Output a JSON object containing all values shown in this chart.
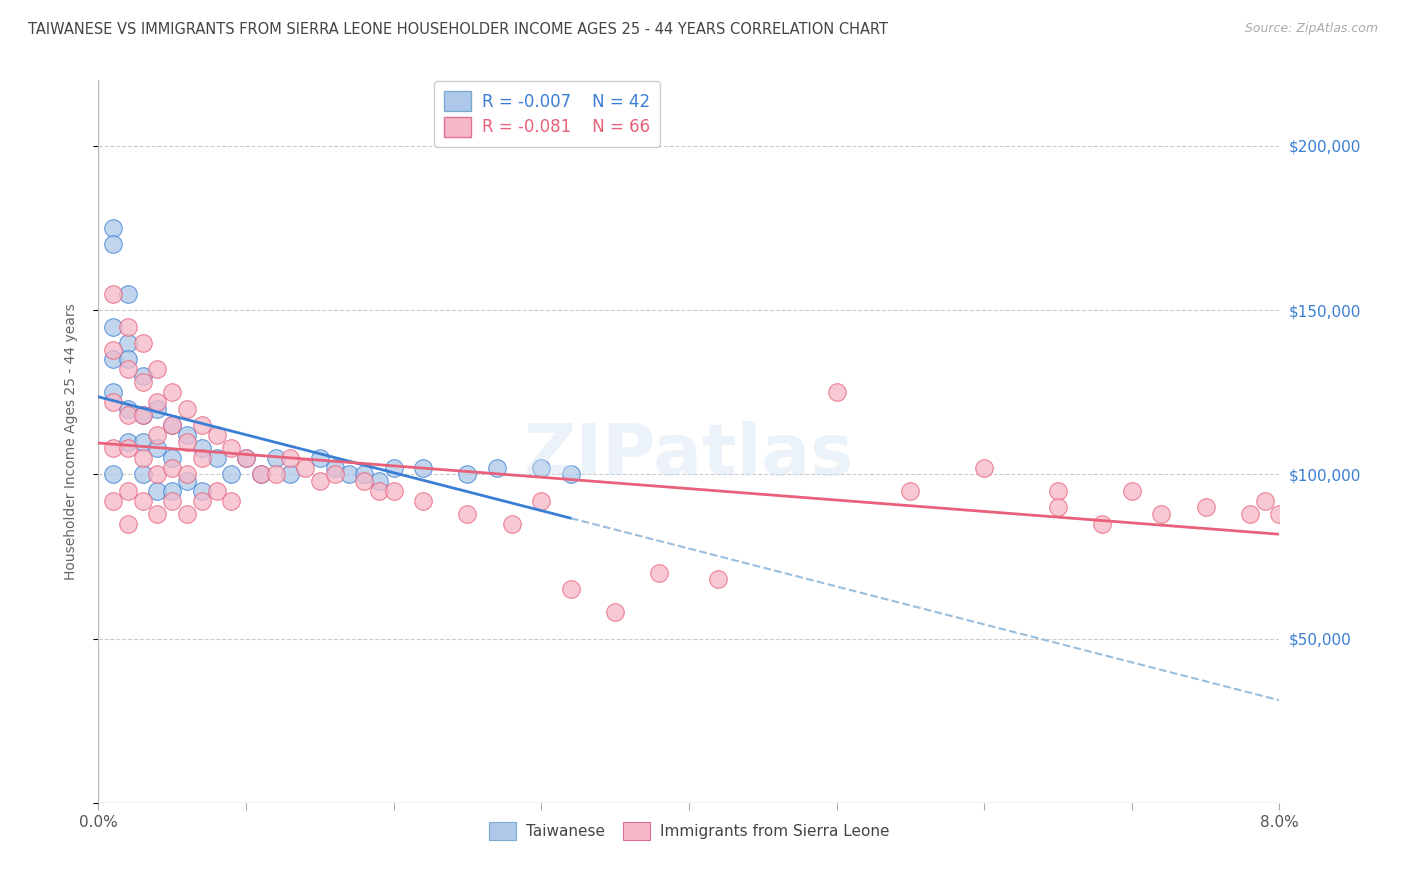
{
  "title": "TAIWANESE VS IMMIGRANTS FROM SIERRA LEONE HOUSEHOLDER INCOME AGES 25 - 44 YEARS CORRELATION CHART",
  "source": "Source: ZipAtlas.com",
  "ylabel": "Householder Income Ages 25 - 44 years",
  "legend_label_1": "Taiwanese",
  "legend_label_2": "Immigrants from Sierra Leone",
  "r1": -0.007,
  "n1": 42,
  "r2": -0.081,
  "n2": 66,
  "color1": "#adc8e8",
  "color2": "#f5b8c8",
  "line_color1": "#3a7fd4",
  "line_color2": "#e8607a",
  "dashed_color": "#9abede",
  "xlim": [
    0.0,
    0.08
  ],
  "ylim": [
    0,
    220000
  ],
  "yticks": [
    0,
    50000,
    100000,
    150000,
    200000
  ],
  "ytick_labels": [
    "",
    "$50,000",
    "$100,000",
    "$150,000",
    "$200,000"
  ],
  "xticks": [
    0.0,
    0.01,
    0.02,
    0.03,
    0.04,
    0.05,
    0.06,
    0.07,
    0.08
  ],
  "xtick_labels": [
    "0.0%",
    "",
    "",
    "",
    "",
    "",
    "",
    "",
    "8.0%"
  ],
  "watermark": "ZIPatlas",
  "taiwanese_x": [
    0.001,
    0.001,
    0.001,
    0.001,
    0.001,
    0.001,
    0.002,
    0.002,
    0.002,
    0.002,
    0.002,
    0.003,
    0.003,
    0.003,
    0.003,
    0.004,
    0.004,
    0.004,
    0.005,
    0.005,
    0.005,
    0.006,
    0.006,
    0.007,
    0.007,
    0.008,
    0.009,
    0.01,
    0.011,
    0.012,
    0.013,
    0.015,
    0.016,
    0.017,
    0.018,
    0.019,
    0.02,
    0.022,
    0.025,
    0.027,
    0.03,
    0.032
  ],
  "taiwanese_y": [
    175000,
    170000,
    145000,
    135000,
    125000,
    100000,
    155000,
    140000,
    135000,
    120000,
    110000,
    130000,
    118000,
    110000,
    100000,
    120000,
    108000,
    95000,
    115000,
    105000,
    95000,
    112000,
    98000,
    108000,
    95000,
    105000,
    100000,
    105000,
    100000,
    105000,
    100000,
    105000,
    102000,
    100000,
    100000,
    98000,
    102000,
    102000,
    100000,
    102000,
    102000,
    100000
  ],
  "sierra_leone_x": [
    0.001,
    0.001,
    0.001,
    0.001,
    0.001,
    0.002,
    0.002,
    0.002,
    0.002,
    0.002,
    0.002,
    0.003,
    0.003,
    0.003,
    0.003,
    0.003,
    0.004,
    0.004,
    0.004,
    0.004,
    0.004,
    0.005,
    0.005,
    0.005,
    0.005,
    0.006,
    0.006,
    0.006,
    0.006,
    0.007,
    0.007,
    0.007,
    0.008,
    0.008,
    0.009,
    0.009,
    0.01,
    0.011,
    0.012,
    0.013,
    0.014,
    0.015,
    0.016,
    0.018,
    0.019,
    0.02,
    0.022,
    0.025,
    0.028,
    0.03,
    0.032,
    0.035,
    0.038,
    0.042,
    0.05,
    0.055,
    0.06,
    0.065,
    0.065,
    0.068,
    0.07,
    0.072,
    0.075,
    0.078,
    0.079,
    0.08
  ],
  "sierra_leone_y": [
    155000,
    138000,
    122000,
    108000,
    92000,
    145000,
    132000,
    118000,
    108000,
    95000,
    85000,
    140000,
    128000,
    118000,
    105000,
    92000,
    132000,
    122000,
    112000,
    100000,
    88000,
    125000,
    115000,
    102000,
    92000,
    120000,
    110000,
    100000,
    88000,
    115000,
    105000,
    92000,
    112000,
    95000,
    108000,
    92000,
    105000,
    100000,
    100000,
    105000,
    102000,
    98000,
    100000,
    98000,
    95000,
    95000,
    92000,
    88000,
    85000,
    92000,
    65000,
    58000,
    70000,
    68000,
    125000,
    95000,
    102000,
    95000,
    90000,
    85000,
    95000,
    88000,
    90000,
    88000,
    92000,
    88000
  ]
}
